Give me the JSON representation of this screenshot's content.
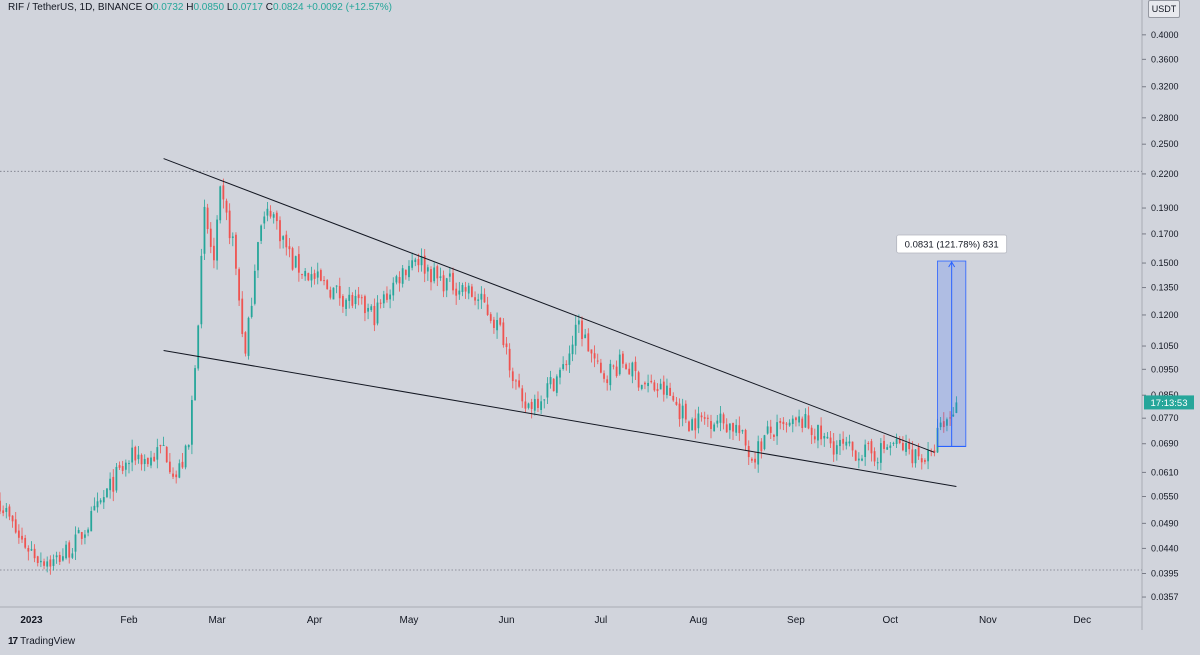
{
  "header": {
    "symbol": "RIF / TetherUS, 1D, BINANCE",
    "o_label": "O",
    "o": "0.0732",
    "h_label": "H",
    "h": "0.0850",
    "l_label": "L",
    "l": "0.0717",
    "c_label": "C",
    "c": "0.0824",
    "change": "+0.0092 (+12.57%)"
  },
  "currency": "USDT",
  "footer": {
    "logo_mark": "17",
    "brand": "TradingView"
  },
  "colors": {
    "up": "#26a69a",
    "down": "#ef5350",
    "background": "#d1d4dc",
    "price_tag": "#26a69a",
    "range_box": "#2962ff"
  },
  "chart_data": {
    "type": "candlestick",
    "price_scale": "log",
    "ylim": [
      0.0345,
      0.43
    ],
    "yticks": [
      "0.4000",
      "0.3600",
      "0.3200",
      "0.2800",
      "0.2500",
      "0.2200",
      "0.1900",
      "0.1700",
      "0.1500",
      "0.1350",
      "0.1200",
      "0.1050",
      "0.0950",
      "0.0850",
      "0.0770",
      "0.0690",
      "0.0610",
      "0.0550",
      "0.0490",
      "0.0440",
      "0.0395",
      "0.0357"
    ],
    "xticks": [
      "2023",
      "Feb",
      "Mar",
      "Apr",
      "May",
      "Jun",
      "Jul",
      "Aug",
      "Sep",
      "Oct",
      "Nov",
      "Dec"
    ],
    "xlim": [
      "2022-12-22",
      "2023-12-20"
    ],
    "dotted_levels": [
      0.2225,
      0.0401
    ],
    "last_price_label": "17:13:53",
    "last_price": 0.0824,
    "candle_path": [
      [
        "2022-12-22",
        0.054
      ],
      [
        "2022-12-28",
        0.046
      ],
      [
        "2023-01-03",
        0.0425
      ],
      [
        "2023-01-08",
        0.0415
      ],
      [
        "2023-01-15",
        0.045
      ],
      [
        "2023-01-22",
        0.052
      ],
      [
        "2023-01-28",
        0.06
      ],
      [
        "2023-02-03",
        0.066
      ],
      [
        "2023-02-07",
        0.064
      ],
      [
        "2023-02-12",
        0.068
      ],
      [
        "2023-02-16",
        0.06
      ],
      [
        "2023-02-20",
        0.068
      ],
      [
        "2023-02-23",
        0.12
      ],
      [
        "2023-02-25",
        0.185
      ],
      [
        "2023-02-28",
        0.15
      ],
      [
        "2023-03-02",
        0.2
      ],
      [
        "2023-03-06",
        0.165
      ],
      [
        "2023-03-10",
        0.1
      ],
      [
        "2023-03-14",
        0.17
      ],
      [
        "2023-03-18",
        0.19
      ],
      [
        "2023-03-25",
        0.15
      ],
      [
        "2023-04-01",
        0.14
      ],
      [
        "2023-04-10",
        0.13
      ],
      [
        "2023-04-20",
        0.12
      ],
      [
        "2023-04-27",
        0.14
      ],
      [
        "2023-05-03",
        0.155
      ],
      [
        "2023-05-10",
        0.14
      ],
      [
        "2023-05-18",
        0.135
      ],
      [
        "2023-05-25",
        0.125
      ],
      [
        "2023-05-31",
        0.11
      ],
      [
        "2023-06-06",
        0.08
      ],
      [
        "2023-06-12",
        0.085
      ],
      [
        "2023-06-19",
        0.095
      ],
      [
        "2023-06-24",
        0.115
      ],
      [
        "2023-07-01",
        0.092
      ],
      [
        "2023-07-08",
        0.098
      ],
      [
        "2023-07-15",
        0.089
      ],
      [
        "2023-07-22",
        0.086
      ],
      [
        "2023-07-29",
        0.076
      ],
      [
        "2023-08-06",
        0.077
      ],
      [
        "2023-08-13",
        0.074
      ],
      [
        "2023-08-18",
        0.065
      ],
      [
        "2023-08-23",
        0.072
      ],
      [
        "2023-08-30",
        0.074
      ],
      [
        "2023-09-03",
        0.076
      ],
      [
        "2023-09-10",
        0.07
      ],
      [
        "2023-09-18",
        0.067
      ],
      [
        "2023-09-26",
        0.066
      ],
      [
        "2023-10-02",
        0.069
      ],
      [
        "2023-10-09",
        0.066
      ],
      [
        "2023-10-14",
        0.0645
      ],
      [
        "2023-10-16",
        0.072
      ],
      [
        "2023-10-19",
        0.076
      ],
      [
        "2023-10-22",
        0.0824
      ]
    ],
    "trendlines": [
      {
        "name": "upper",
        "from": [
          "2023-02-12",
          0.235
        ],
        "to": [
          "2023-10-15",
          0.0665
        ]
      },
      {
        "name": "lower",
        "from": [
          "2023-02-12",
          0.103
        ],
        "to": [
          "2023-10-22",
          0.0574
        ]
      }
    ],
    "range_measure": {
      "label": "0.0831 (121.78%) 831",
      "from_date": "2023-10-16",
      "to_date": "2023-10-25",
      "low": 0.0682,
      "high": 0.1513
    }
  }
}
